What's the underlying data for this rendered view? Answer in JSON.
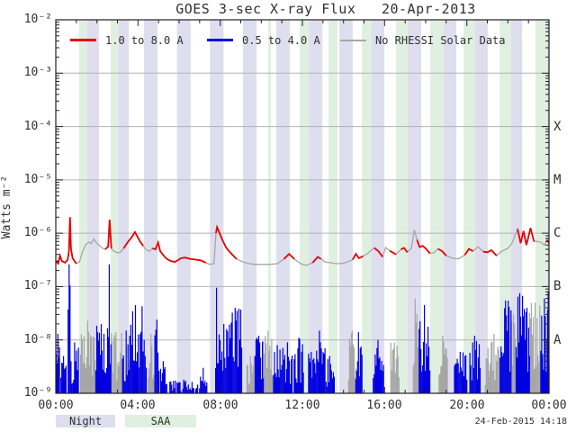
{
  "title": "GOES 3-sec X-ray Flux   20-Apr-2013",
  "footer": {
    "night_label": "Night",
    "saa_label": "SAA",
    "timestamp": "24-Feb-2015 14:18"
  },
  "chart_data": {
    "type": "line",
    "title": "GOES 3-sec X-ray Flux   20-Apr-2013",
    "xlabel": "",
    "ylabel": "Watts m⁻²",
    "x_range_hours": [
      0,
      24
    ],
    "y_range": [
      1e-09,
      0.01
    ],
    "grid": "horizontal-decades",
    "legend_position": "top-inside",
    "legend": [
      {
        "label": "1.0 to 8.0 A",
        "color": "#e60000"
      },
      {
        "label": "0.5 to 4.0 A",
        "color": "#0000e0"
      },
      {
        "label": "No RHESSI Solar Data",
        "color": "#a6a6a6"
      }
    ],
    "y_ticks": [
      {
        "label": "10⁻²",
        "exp": -2
      },
      {
        "label": "10⁻³",
        "exp": -3
      },
      {
        "label": "10⁻⁴",
        "exp": -4
      },
      {
        "label": "10⁻⁵",
        "exp": -5
      },
      {
        "label": "10⁻⁶",
        "exp": -6
      },
      {
        "label": "10⁻⁷",
        "exp": -7
      },
      {
        "label": "10⁻⁸",
        "exp": -8
      },
      {
        "label": "10⁻⁹",
        "exp": -9
      }
    ],
    "x_ticks": [
      {
        "label": "00:00",
        "hour": 0
      },
      {
        "label": "04:00",
        "hour": 4
      },
      {
        "label": "08:00",
        "hour": 8
      },
      {
        "label": "12:00",
        "hour": 12
      },
      {
        "label": "16:00",
        "hour": 16
      },
      {
        "label": "20:00",
        "hour": 20
      },
      {
        "label": "00:00",
        "hour": 24
      }
    ],
    "flare_classes": [
      {
        "label": "X",
        "flux": 0.0001
      },
      {
        "label": "M",
        "flux": 1e-05
      },
      {
        "label": "C",
        "flux": 1e-06
      },
      {
        "label": "B",
        "flux": 1e-07
      },
      {
        "label": "A",
        "flux": 1e-08
      }
    ],
    "colors": {
      "red": "#e60000",
      "blue": "#0000e0",
      "gray": "#a6a6a6",
      "grid": "#b3b3b3",
      "axis": "#222222",
      "night_band": "#dedeef",
      "saa_band": "#e0f0e0"
    },
    "bands": {
      "night_hours": [
        [
          1.53,
          2.1
        ],
        [
          3.05,
          3.56
        ],
        [
          4.29,
          4.95
        ],
        [
          5.9,
          6.56
        ],
        [
          7.5,
          8.16
        ],
        [
          9.11,
          9.77
        ],
        [
          10.73,
          11.39
        ],
        [
          12.31,
          12.97
        ],
        [
          13.8,
          14.45
        ],
        [
          15.37,
          15.99
        ],
        [
          17.12,
          17.78
        ],
        [
          18.88,
          19.49
        ],
        [
          20.41,
          21.02
        ],
        [
          22.16,
          22.69
        ],
        [
          23.91,
          24.0
        ]
      ],
      "saa_hours": [
        [
          1.14,
          1.53
        ],
        [
          2.67,
          3.05
        ],
        [
          10.34,
          10.47
        ],
        [
          11.87,
          12.31
        ],
        [
          13.27,
          13.71
        ],
        [
          14.89,
          15.37
        ],
        [
          16.56,
          17.12
        ],
        [
          18.22,
          18.88
        ],
        [
          19.84,
          20.41
        ],
        [
          21.6,
          22.16
        ],
        [
          23.34,
          23.91
        ]
      ]
    },
    "series": [
      {
        "name": "1.0 to 8.0 A",
        "type": "line",
        "points": [
          [
            0,
            3e-07
          ],
          [
            0.12,
            2.7e-07
          ],
          [
            0.2,
            3.8e-07
          ],
          [
            0.3,
            3e-07
          ],
          [
            0.45,
            2.8e-07
          ],
          [
            0.58,
            3.2e-07
          ],
          [
            0.64,
            4.5e-07
          ],
          [
            0.69,
            2e-06
          ],
          [
            0.74,
            5e-07
          ],
          [
            0.82,
            3.4e-07
          ],
          [
            1.0,
            2.7e-07
          ],
          [
            1.15,
            2.9e-07
          ],
          [
            1.3,
            4.5e-07
          ],
          [
            1.45,
            6e-07
          ],
          [
            1.6,
            6.8e-07
          ],
          [
            1.72,
            6.4e-07
          ],
          [
            1.85,
            7.8e-07
          ],
          [
            1.95,
            6.8e-07
          ],
          [
            2.1,
            6e-07
          ],
          [
            2.25,
            5.3e-07
          ],
          [
            2.4,
            5e-07
          ],
          [
            2.55,
            5.6e-07
          ],
          [
            2.62,
            1.8e-06
          ],
          [
            2.7,
            5.2e-07
          ],
          [
            2.82,
            4.6e-07
          ],
          [
            3.0,
            4.3e-07
          ],
          [
            3.15,
            4.4e-07
          ],
          [
            3.3,
            5.2e-07
          ],
          [
            3.5,
            6.8e-07
          ],
          [
            3.7,
            8.5e-07
          ],
          [
            3.85,
            1.05e-06
          ],
          [
            3.95,
            9e-07
          ],
          [
            4.1,
            7e-07
          ],
          [
            4.25,
            5.8e-07
          ],
          [
            4.4,
            4.9e-07
          ],
          [
            4.55,
            4.6e-07
          ],
          [
            4.7,
            5.2e-07
          ],
          [
            4.85,
            5e-07
          ],
          [
            4.98,
            6.7e-07
          ],
          [
            5.08,
            4.6e-07
          ],
          [
            5.25,
            3.8e-07
          ],
          [
            5.4,
            3.3e-07
          ],
          [
            5.6,
            3e-07
          ],
          [
            5.8,
            2.9e-07
          ],
          [
            6.1,
            3.4e-07
          ],
          [
            6.3,
            3.5e-07
          ],
          [
            6.55,
            3.3e-07
          ],
          [
            6.8,
            3.2e-07
          ],
          [
            7.05,
            3.1e-07
          ],
          [
            7.3,
            2.8e-07
          ],
          [
            7.5,
            2.6e-07
          ],
          [
            7.7,
            2.7e-07
          ],
          [
            7.79,
            1e-06
          ],
          [
            7.85,
            1.3e-06
          ],
          [
            7.95,
            1.05e-06
          ],
          [
            8.1,
            7.5e-07
          ],
          [
            8.3,
            5.3e-07
          ],
          [
            8.5,
            4.3e-07
          ],
          [
            8.8,
            3.3e-07
          ],
          [
            9.1,
            2.9e-07
          ],
          [
            9.4,
            2.7e-07
          ],
          [
            9.7,
            2.6e-07
          ],
          [
            10.0,
            2.6e-07
          ],
          [
            10.4,
            2.6e-07
          ],
          [
            10.8,
            2.7e-07
          ],
          [
            11.1,
            3.3e-07
          ],
          [
            11.35,
            4.1e-07
          ],
          [
            11.6,
            3.3e-07
          ],
          [
            11.8,
            2.9e-07
          ],
          [
            12.0,
            2.6e-07
          ],
          [
            12.2,
            2.5e-07
          ],
          [
            12.5,
            2.8e-07
          ],
          [
            12.75,
            3.6e-07
          ],
          [
            12.9,
            3.3e-07
          ],
          [
            13.1,
            2.9e-07
          ],
          [
            13.35,
            2.8e-07
          ],
          [
            13.6,
            2.7e-07
          ],
          [
            13.9,
            2.7e-07
          ],
          [
            14.2,
            2.9e-07
          ],
          [
            14.45,
            3.2e-07
          ],
          [
            14.6,
            4.1e-07
          ],
          [
            14.75,
            3.4e-07
          ],
          [
            14.95,
            3.7e-07
          ],
          [
            15.15,
            4.1e-07
          ],
          [
            15.35,
            4.8e-07
          ],
          [
            15.5,
            5.3e-07
          ],
          [
            15.7,
            4.6e-07
          ],
          [
            15.9,
            3.6e-07
          ],
          [
            16.05,
            5.4e-07
          ],
          [
            16.25,
            4.7e-07
          ],
          [
            16.55,
            4e-07
          ],
          [
            16.8,
            5e-07
          ],
          [
            16.95,
            5.3e-07
          ],
          [
            17.1,
            4.4e-07
          ],
          [
            17.3,
            5.2e-07
          ],
          [
            17.45,
            1.15e-06
          ],
          [
            17.58,
            7.5e-07
          ],
          [
            17.7,
            5.5e-07
          ],
          [
            17.85,
            5.8e-07
          ],
          [
            18.0,
            5.2e-07
          ],
          [
            18.2,
            4.2e-07
          ],
          [
            18.4,
            4.3e-07
          ],
          [
            18.6,
            5.1e-07
          ],
          [
            18.8,
            4.6e-07
          ],
          [
            19.0,
            3.8e-07
          ],
          [
            19.3,
            3.4e-07
          ],
          [
            19.6,
            3.3e-07
          ],
          [
            19.9,
            3.9e-07
          ],
          [
            20.1,
            5.1e-07
          ],
          [
            20.3,
            4.6e-07
          ],
          [
            20.55,
            5.6e-07
          ],
          [
            20.8,
            4.5e-07
          ],
          [
            21.0,
            4.4e-07
          ],
          [
            21.2,
            4.8e-07
          ],
          [
            21.45,
            3.8e-07
          ],
          [
            21.7,
            4.6e-07
          ],
          [
            22.0,
            5.2e-07
          ],
          [
            22.2,
            6.5e-07
          ],
          [
            22.47,
            1.2e-06
          ],
          [
            22.62,
            6.5e-07
          ],
          [
            22.76,
            1.1e-06
          ],
          [
            22.9,
            6e-07
          ],
          [
            23.1,
            1.25e-06
          ],
          [
            23.27,
            7e-07
          ],
          [
            23.45,
            7e-07
          ],
          [
            23.6,
            6.8e-07
          ],
          [
            23.78,
            6e-07
          ],
          [
            23.9,
            7.5e-07
          ],
          [
            24,
            6.5e-07
          ]
        ],
        "gray_hours": [
          [
            1.0,
            2.35
          ],
          [
            2.7,
            3.3
          ],
          [
            4.3,
            4.75
          ],
          [
            7.25,
            7.78
          ],
          [
            8.9,
            11.05
          ],
          [
            11.55,
            12.5
          ],
          [
            12.95,
            14.45
          ],
          [
            14.9,
            15.55
          ],
          [
            15.95,
            16.35
          ],
          [
            16.6,
            16.78
          ],
          [
            17.12,
            17.58
          ],
          [
            18.25,
            18.55
          ],
          [
            18.95,
            19.9
          ],
          [
            20.35,
            20.8
          ],
          [
            21.5,
            22.35
          ],
          [
            23.3,
            23.85
          ]
        ]
      },
      {
        "name": "0.5 to 4.0 A",
        "type": "spikes",
        "clusters": [
          [
            0.02,
            0.18,
            1.3e-08,
            "blue"
          ],
          [
            0.25,
            0.5,
            5e-09,
            "blue"
          ],
          [
            0.6,
            0.74,
            2.6e-07,
            "blue"
          ],
          [
            0.78,
            1.1,
            9e-09,
            "blue"
          ],
          [
            1.2,
            1.9,
            2.3e-08,
            "gray"
          ],
          [
            1.95,
            2.52,
            2e-08,
            "blue"
          ],
          [
            2.56,
            2.68,
            2.6e-07,
            "blue"
          ],
          [
            2.7,
            3.2,
            1.4e-08,
            "gray"
          ],
          [
            3.25,
            3.6,
            1.5e-08,
            "blue"
          ],
          [
            3.6,
            4.2,
            4.5e-08,
            "blue"
          ],
          [
            4.2,
            4.4,
            1e-08,
            "blue"
          ],
          [
            4.5,
            4.8,
            1.3e-08,
            "gray"
          ],
          [
            4.82,
            5.02,
            2.4e-08,
            "blue"
          ],
          [
            5.1,
            5.4,
            4e-09,
            "blue"
          ],
          [
            5.55,
            6.9,
            1.8e-09,
            "blue"
          ],
          [
            7.0,
            7.35,
            3e-09,
            "blue"
          ],
          [
            7.78,
            7.9,
            9.5e-08,
            "blue"
          ],
          [
            7.95,
            8.45,
            2e-08,
            "blue"
          ],
          [
            8.45,
            9.05,
            4e-08,
            "blue"
          ],
          [
            9.3,
            9.65,
            5e-09,
            "gray"
          ],
          [
            9.7,
            10.1,
            1.2e-08,
            "blue"
          ],
          [
            10.1,
            10.55,
            1.5e-08,
            "gray"
          ],
          [
            10.6,
            11.0,
            8e-09,
            "blue"
          ],
          [
            11.05,
            11.5,
            9e-09,
            "blue"
          ],
          [
            11.6,
            12.05,
            1.1e-08,
            "blue"
          ],
          [
            12.3,
            12.6,
            6e-09,
            "blue"
          ],
          [
            12.6,
            13.1,
            1.5e-08,
            "blue"
          ],
          [
            13.15,
            13.55,
            5e-09,
            "blue"
          ],
          [
            14.25,
            14.6,
            1.5e-08,
            "gray"
          ],
          [
            14.6,
            14.9,
            1.4e-08,
            "blue"
          ],
          [
            15.45,
            15.95,
            1e-08,
            "blue"
          ],
          [
            16.3,
            16.7,
            9e-09,
            "gray"
          ],
          [
            17.4,
            17.62,
            6e-08,
            "gray"
          ],
          [
            17.68,
            18.2,
            4.5e-08,
            "blue"
          ],
          [
            18.65,
            19.05,
            1.2e-08,
            "gray"
          ],
          [
            19.4,
            20.0,
            6e-09,
            "blue"
          ],
          [
            20.15,
            20.65,
            1.2e-08,
            "blue"
          ],
          [
            20.9,
            21.2,
            7e-09,
            "gray"
          ],
          [
            21.05,
            21.6,
            1.3e-08,
            "gray"
          ],
          [
            21.62,
            22.15,
            5.5e-08,
            "blue"
          ],
          [
            22.15,
            22.4,
            3e-08,
            "gray"
          ],
          [
            22.4,
            22.8,
            7.5e-08,
            "blue"
          ],
          [
            22.8,
            23.05,
            4e-08,
            "blue"
          ],
          [
            23.05,
            23.6,
            5e-08,
            "gray"
          ],
          [
            23.6,
            23.95,
            6e-08,
            "blue"
          ],
          [
            23.93,
            24.0,
            8e-08,
            "blue"
          ]
        ]
      }
    ]
  }
}
